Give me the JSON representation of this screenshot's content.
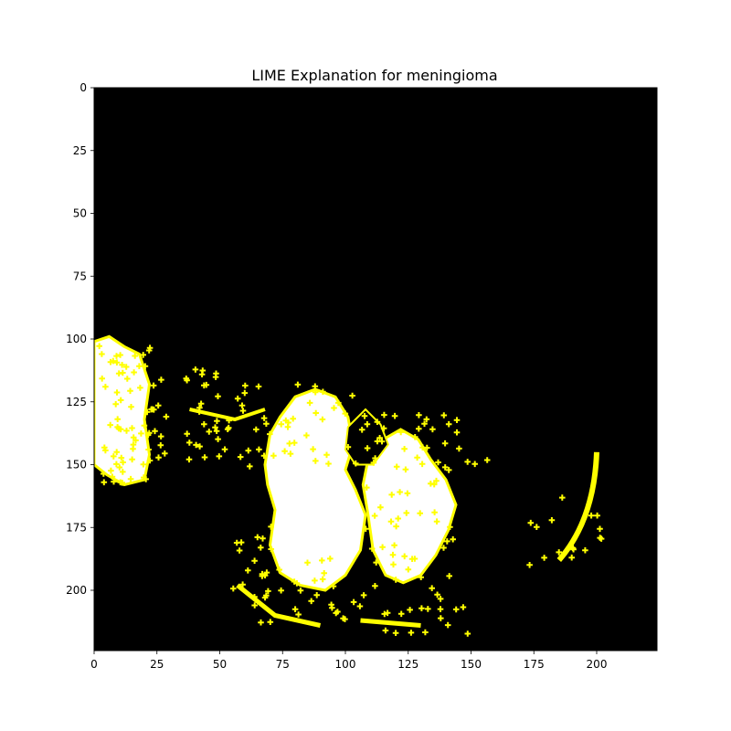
{
  "chart_data": {
    "type": "heatmap",
    "title": "LIME Explanation for meningioma",
    "xlabel": "",
    "ylabel": "",
    "x_ticks": [
      0,
      25,
      50,
      75,
      100,
      125,
      150,
      175,
      200
    ],
    "y_ticks": [
      0,
      25,
      50,
      75,
      100,
      125,
      150,
      175,
      200
    ],
    "xlim": [
      0,
      224
    ],
    "ylim": [
      224,
      0
    ],
    "grid": false,
    "colors": {
      "background": "#000000",
      "highlight": "#ffffff",
      "boundary": "#ffff00"
    }
  }
}
